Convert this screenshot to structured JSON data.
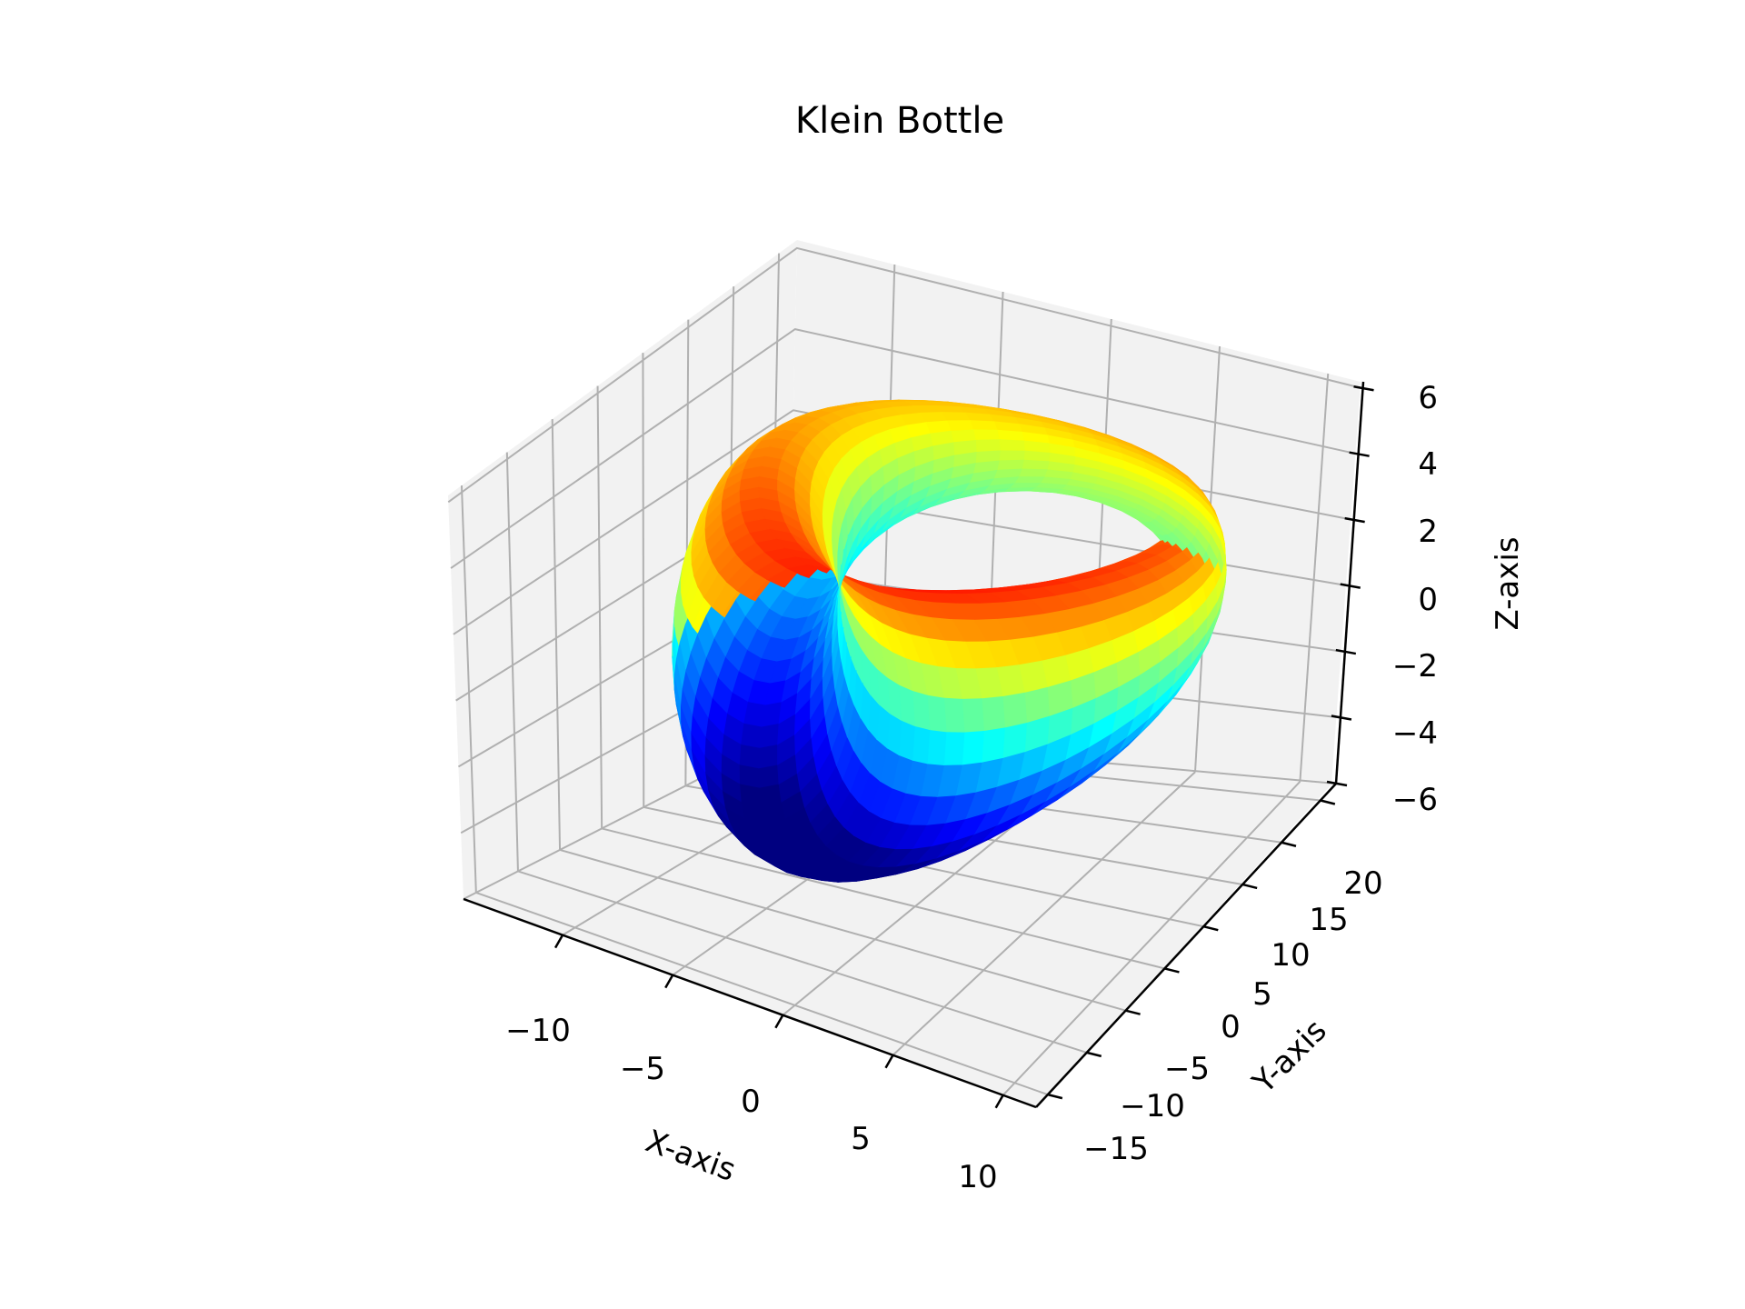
{
  "chart_data": {
    "type": "surface3d",
    "title": "Klein Bottle",
    "colormap": "jet",
    "xlabel": "X-axis",
    "ylabel": "Y-axis",
    "zlabel": "Z-axis",
    "xlim": [
      -14.5,
      11.5
    ],
    "ylim": [
      -16.5,
      22
    ],
    "zlim": [
      -6,
      6.2
    ],
    "x_ticks": [
      -10,
      -5,
      0,
      5,
      10
    ],
    "y_ticks": [
      -15,
      -10,
      -5,
      0,
      5,
      10,
      15,
      20
    ],
    "z_ticks": [
      -6,
      -4,
      -2,
      0,
      2,
      4,
      6
    ],
    "x_tick_labels": [
      "−10",
      "−5",
      "0",
      "5",
      "10"
    ],
    "y_tick_labels": [
      "−15",
      "−10",
      "−5",
      "0",
      "5",
      "10",
      "15",
      "20"
    ],
    "z_tick_labels": [
      "−6",
      "−4",
      "−2",
      "0",
      "2",
      "4",
      "6"
    ],
    "surface": {
      "parametric": "Klein bottle (figure-8 style)",
      "x_range": [
        -11.5,
        11.0
      ],
      "y_range": [
        -13.5,
        20.0
      ],
      "z_range": [
        -6.0,
        6.0
      ]
    },
    "grid": true,
    "pane_color": "#f2f2f2"
  }
}
